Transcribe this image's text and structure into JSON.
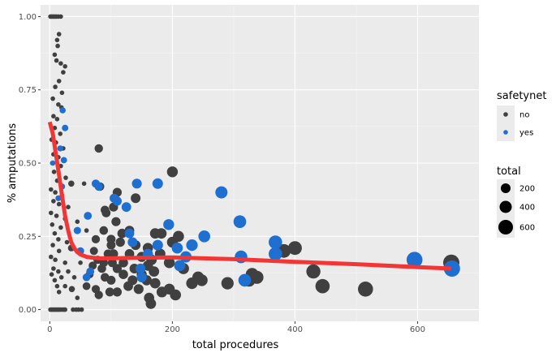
{
  "chart_data": {
    "type": "scatter",
    "title": "",
    "xlabel": "total procedures",
    "ylabel": "% amputations",
    "xlim": [
      -15,
      700
    ],
    "ylim": [
      -0.04,
      1.04
    ],
    "x_ticks": [
      0,
      200,
      400,
      600
    ],
    "x_tick_labels": [
      "0",
      "200",
      "400",
      "600"
    ],
    "y_ticks": [
      0,
      0.25,
      0.5,
      0.75,
      1.0
    ],
    "y_tick_labels": [
      "0.00",
      "0.25",
      "0.50",
      "0.75",
      "1.00"
    ],
    "grid": true,
    "legend_position": "right",
    "colors": {
      "no": "#404040",
      "yes": "#1f6fd1",
      "smooth": "#f23535",
      "panel": "#ebebeb",
      "grid": "#ffffff"
    },
    "legend": {
      "color_title": "safetynet",
      "color_entries": [
        {
          "label": "no",
          "group": "no"
        },
        {
          "label": "yes",
          "group": "yes"
        }
      ],
      "size_title": "total",
      "size_entries": [
        {
          "label": "200",
          "value": 200
        },
        {
          "label": "400",
          "value": 400
        },
        {
          "label": "600",
          "value": 600
        }
      ]
    },
    "series": [
      {
        "name": "no",
        "points": [
          [
            1,
            1.0
          ],
          [
            3,
            1.0
          ],
          [
            5,
            1.0
          ],
          [
            7,
            1.0
          ],
          [
            9,
            1.0
          ],
          [
            11,
            1.0
          ],
          [
            14,
            1.0
          ],
          [
            18,
            1.0
          ],
          [
            12,
            0.92
          ],
          [
            15,
            0.94
          ],
          [
            13,
            0.9
          ],
          [
            8,
            0.87
          ],
          [
            11,
            0.85
          ],
          [
            18,
            0.84
          ],
          [
            25,
            0.83
          ],
          [
            22,
            0.81
          ],
          [
            15,
            0.78
          ],
          [
            9,
            0.76
          ],
          [
            20,
            0.74
          ],
          [
            5,
            0.72
          ],
          [
            14,
            0.7
          ],
          [
            19,
            0.69
          ],
          [
            6,
            0.66
          ],
          [
            12,
            0.65
          ],
          [
            8,
            0.62
          ],
          [
            17,
            0.6
          ],
          [
            3,
            0.58
          ],
          [
            10,
            0.57
          ],
          [
            22,
            0.55
          ],
          [
            80,
            0.55
          ],
          [
            6,
            0.53
          ],
          [
            14,
            0.52
          ],
          [
            4,
            0.5
          ],
          [
            18,
            0.49
          ],
          [
            7,
            0.47
          ],
          [
            26,
            0.45
          ],
          [
            12,
            0.44
          ],
          [
            35,
            0.43
          ],
          [
            56,
            0.43
          ],
          [
            2,
            0.41
          ],
          [
            9,
            0.4
          ],
          [
            20,
            0.39
          ],
          [
            6,
            0.37
          ],
          [
            15,
            0.36
          ],
          [
            30,
            0.35
          ],
          [
            90,
            0.34
          ],
          [
            2,
            0.33
          ],
          [
            11,
            0.32
          ],
          [
            25,
            0.31
          ],
          [
            45,
            0.3
          ],
          [
            4,
            0.29
          ],
          [
            18,
            0.28
          ],
          [
            60,
            0.27
          ],
          [
            8,
            0.26
          ],
          [
            14,
            0.24
          ],
          [
            28,
            0.23
          ],
          [
            5,
            0.22
          ],
          [
            35,
            0.21
          ],
          [
            15,
            0.2
          ],
          [
            70,
            0.2
          ],
          [
            100,
            0.22
          ],
          [
            2,
            0.18
          ],
          [
            9,
            0.17
          ],
          [
            25,
            0.16
          ],
          [
            50,
            0.16
          ],
          [
            6,
            0.14
          ],
          [
            14,
            0.13
          ],
          [
            30,
            0.13
          ],
          [
            3,
            0.12
          ],
          [
            19,
            0.11
          ],
          [
            40,
            0.11
          ],
          [
            8,
            0.1
          ],
          [
            12,
            0.08
          ],
          [
            25,
            0.08
          ],
          [
            15,
            0.06
          ],
          [
            36,
            0.07
          ],
          [
            45,
            0.04
          ],
          [
            1,
            0.0
          ],
          [
            3,
            0.0
          ],
          [
            5,
            0.0
          ],
          [
            7,
            0.0
          ],
          [
            9,
            0.0
          ],
          [
            11,
            0.0
          ],
          [
            13,
            0.0
          ],
          [
            15,
            0.0
          ],
          [
            17,
            0.0
          ],
          [
            20,
            0.0
          ],
          [
            23,
            0.0
          ],
          [
            25,
            0.0
          ],
          [
            38,
            0.0
          ],
          [
            43,
            0.0
          ],
          [
            47,
            0.0
          ],
          [
            52,
            0.0
          ],
          [
            200,
            0.47
          ],
          [
            110,
            0.4
          ],
          [
            140,
            0.38
          ],
          [
            82,
            0.42
          ],
          [
            104,
            0.35
          ],
          [
            92,
            0.33
          ],
          [
            108,
            0.3
          ],
          [
            88,
            0.27
          ],
          [
            118,
            0.26
          ],
          [
            130,
            0.27
          ],
          [
            172,
            0.26
          ],
          [
            182,
            0.26
          ],
          [
            210,
            0.25
          ],
          [
            75,
            0.24
          ],
          [
            100,
            0.24
          ],
          [
            115,
            0.23
          ],
          [
            140,
            0.22
          ],
          [
            160,
            0.21
          ],
          [
            200,
            0.23
          ],
          [
            72,
            0.2
          ],
          [
            95,
            0.19
          ],
          [
            104,
            0.19
          ],
          [
            130,
            0.19
          ],
          [
            150,
            0.18
          ],
          [
            166,
            0.17
          ],
          [
            180,
            0.19
          ],
          [
            78,
            0.17
          ],
          [
            88,
            0.16
          ],
          [
            102,
            0.16
          ],
          [
            120,
            0.16
          ],
          [
            138,
            0.14
          ],
          [
            160,
            0.15
          ],
          [
            195,
            0.16
          ],
          [
            70,
            0.15
          ],
          [
            85,
            0.14
          ],
          [
            110,
            0.14
          ],
          [
            150,
            0.12
          ],
          [
            170,
            0.13
          ],
          [
            218,
            0.14
          ],
          [
            65,
            0.12
          ],
          [
            90,
            0.11
          ],
          [
            100,
            0.1
          ],
          [
            120,
            0.12
          ],
          [
            135,
            0.1
          ],
          [
            158,
            0.1
          ],
          [
            172,
            0.09
          ],
          [
            60,
            0.08
          ],
          [
            75,
            0.07
          ],
          [
            98,
            0.06
          ],
          [
            128,
            0.08
          ],
          [
            145,
            0.07
          ],
          [
            195,
            0.07
          ],
          [
            205,
            0.05
          ],
          [
            80,
            0.05
          ],
          [
            110,
            0.06
          ],
          [
            162,
            0.04
          ],
          [
            183,
            0.06
          ],
          [
            165,
            0.02
          ],
          [
            248,
            0.1
          ],
          [
            232,
            0.09
          ],
          [
            242,
            0.11
          ],
          [
            290,
            0.09
          ],
          [
            330,
            0.12
          ],
          [
            325,
            0.1
          ],
          [
            338,
            0.11
          ],
          [
            382,
            0.2
          ],
          [
            400,
            0.21
          ],
          [
            430,
            0.13
          ],
          [
            445,
            0.08
          ],
          [
            515,
            0.07
          ],
          [
            655,
            0.16
          ]
        ],
        "sizes": [
          1,
          1,
          1,
          1,
          1,
          1,
          1,
          1,
          1,
          1,
          1,
          1,
          1,
          1,
          1,
          1,
          1,
          1,
          1,
          1,
          1,
          1,
          1,
          1,
          1,
          1,
          1,
          1,
          1,
          80,
          1,
          1,
          1,
          1,
          1,
          1,
          1,
          20,
          1,
          1,
          1,
          1,
          1,
          1,
          1,
          90,
          1,
          1,
          1,
          1,
          1,
          1,
          1,
          1,
          1,
          1,
          1,
          30,
          1,
          1,
          100,
          1,
          1,
          1,
          1,
          1,
          1,
          1,
          1,
          1,
          1,
          1,
          1,
          1,
          1,
          20,
          1,
          1,
          1,
          1,
          1,
          1,
          1,
          1,
          1,
          1,
          1,
          1,
          1,
          1,
          1,
          1,
          1,
          200,
          110,
          140,
          82,
          104,
          92,
          108,
          88,
          118,
          130,
          172,
          182,
          210,
          75,
          100,
          115,
          140,
          160,
          200,
          72,
          95,
          104,
          130,
          150,
          166,
          180,
          78,
          88,
          102,
          120,
          138,
          160,
          195,
          70,
          85,
          110,
          150,
          170,
          218,
          65,
          90,
          100,
          120,
          135,
          158,
          172,
          60,
          75,
          98,
          128,
          145,
          195,
          205,
          80,
          110,
          162,
          183,
          165,
          248,
          232,
          242,
          290,
          330,
          325,
          338,
          382,
          400,
          430,
          445,
          515,
          655
        ]
      },
      {
        "name": "yes",
        "points": [
          [
            21,
            0.68
          ],
          [
            25,
            0.62
          ],
          [
            17,
            0.55
          ],
          [
            23,
            0.51
          ],
          [
            5,
            0.5
          ],
          [
            20,
            0.42
          ],
          [
            14,
            0.38
          ],
          [
            80,
            0.42
          ],
          [
            75,
            0.43
          ],
          [
            62,
            0.32
          ],
          [
            45,
            0.27
          ],
          [
            50,
            0.2
          ],
          [
            66,
            0.13
          ],
          [
            60,
            0.11
          ],
          [
            105,
            0.38
          ],
          [
            142,
            0.43
          ],
          [
            176,
            0.43
          ],
          [
            110,
            0.37
          ],
          [
            125,
            0.35
          ],
          [
            130,
            0.26
          ],
          [
            135,
            0.23
          ],
          [
            148,
            0.14
          ],
          [
            150,
            0.11
          ],
          [
            160,
            0.19
          ],
          [
            176,
            0.22
          ],
          [
            194,
            0.29
          ],
          [
            208,
            0.21
          ],
          [
            212,
            0.15
          ],
          [
            222,
            0.18
          ],
          [
            232,
            0.22
          ],
          [
            252,
            0.25
          ],
          [
            280,
            0.4
          ],
          [
            310,
            0.3
          ],
          [
            312,
            0.18
          ],
          [
            318,
            0.1
          ],
          [
            368,
            0.23
          ],
          [
            368,
            0.19
          ],
          [
            595,
            0.17
          ],
          [
            656,
            0.14
          ]
        ],
        "sizes": [
          20,
          25,
          17,
          23,
          5,
          20,
          14,
          80,
          75,
          62,
          45,
          50,
          66,
          60,
          105,
          142,
          176,
          110,
          125,
          130,
          135,
          148,
          150,
          160,
          176,
          194,
          208,
          212,
          222,
          232,
          252,
          280,
          310,
          312,
          318,
          368,
          368,
          595,
          656
        ]
      }
    ],
    "smooth": {
      "name": "",
      "x": [
        0,
        5,
        10,
        15,
        20,
        25,
        30,
        35,
        40,
        45,
        50,
        55,
        60,
        70,
        80,
        100,
        150,
        200,
        300,
        400,
        500,
        600,
        655
      ],
      "y": [
        0.64,
        0.6,
        0.53,
        0.46,
        0.39,
        0.32,
        0.27,
        0.23,
        0.21,
        0.196,
        0.188,
        0.184,
        0.18,
        0.177,
        0.175,
        0.175,
        0.177,
        0.178,
        0.172,
        0.163,
        0.155,
        0.145,
        0.14
      ]
    }
  }
}
